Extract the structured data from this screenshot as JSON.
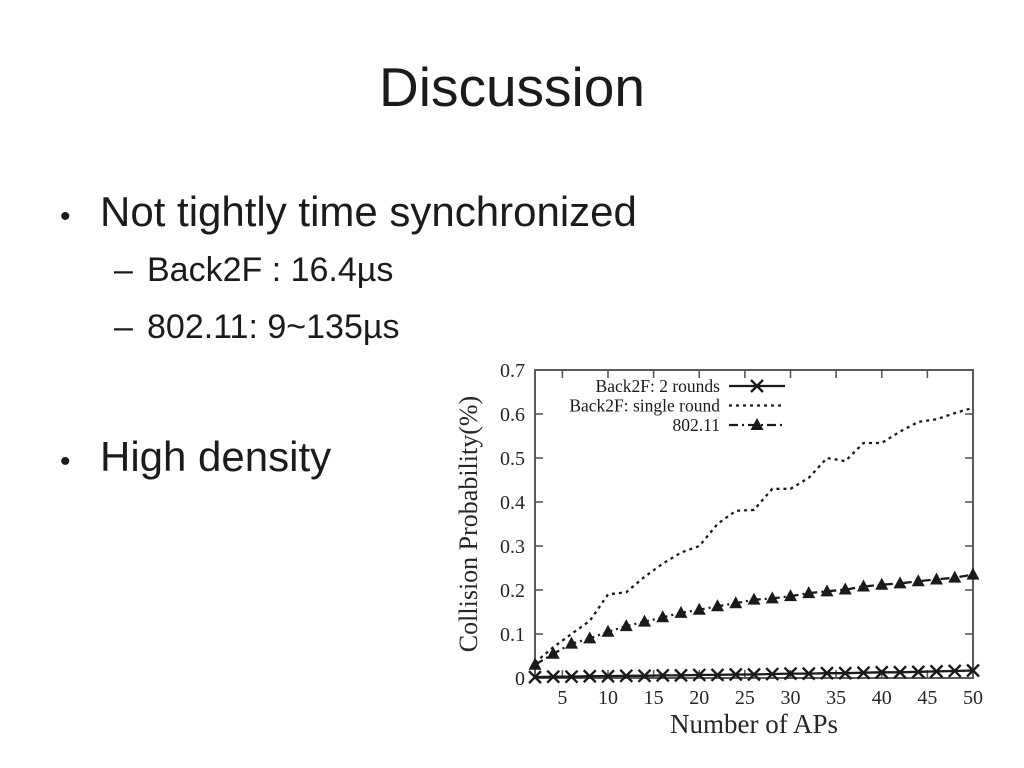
{
  "colors": {
    "ink": "#1a1a1a",
    "background": "#ffffff",
    "chart_frame": "#5a5a5a"
  },
  "slide": {
    "title": "Discussion",
    "bullets": [
      {
        "level": 1,
        "marker": "•",
        "text": "Not tightly time synchronized"
      },
      {
        "level": 2,
        "marker": "–",
        "text": "Back2F : 16.4µs"
      },
      {
        "level": 2,
        "marker": "–",
        "text": "802.11: 9~135µs"
      },
      {
        "level": 1,
        "marker": "•",
        "text": "High density"
      }
    ]
  },
  "chart_data": {
    "type": "line",
    "title": "",
    "xlabel": "Number of APs",
    "ylabel": "Collision Probability(%)",
    "xlim": [
      2,
      50
    ],
    "ylim": [
      0,
      0.7
    ],
    "xticks": [
      5,
      10,
      15,
      20,
      25,
      30,
      35,
      40,
      45,
      50
    ],
    "yticks": [
      0,
      0.1,
      0.2,
      0.3,
      0.4,
      0.5,
      0.6,
      0.7
    ],
    "grid": false,
    "legend_position": "top-left-inside",
    "x": [
      2,
      4,
      6,
      8,
      10,
      12,
      14,
      16,
      18,
      20,
      22,
      24,
      26,
      28,
      30,
      32,
      34,
      36,
      38,
      40,
      42,
      44,
      46,
      48,
      50
    ],
    "series": [
      {
        "name": "Back2F: 2 rounds",
        "marker": "x",
        "line_style": "solid",
        "color": "#1a1a1a",
        "values": [
          0.002,
          0.003,
          0.003,
          0.004,
          0.004,
          0.005,
          0.005,
          0.006,
          0.006,
          0.007,
          0.007,
          0.008,
          0.008,
          0.009,
          0.01,
          0.01,
          0.011,
          0.011,
          0.012,
          0.013,
          0.013,
          0.014,
          0.015,
          0.016,
          0.017
        ]
      },
      {
        "name": "Back2F: single round",
        "marker": "none",
        "line_style": "dashed",
        "color": "#1a1a1a",
        "values": [
          0.035,
          0.07,
          0.1,
          0.13,
          0.19,
          0.195,
          0.23,
          0.26,
          0.285,
          0.3,
          0.35,
          0.38,
          0.382,
          0.43,
          0.43,
          0.455,
          0.5,
          0.493,
          0.534,
          0.534,
          0.56,
          0.582,
          0.588,
          0.602,
          0.614
        ]
      },
      {
        "name": "802.11",
        "marker": "triangle",
        "line_style": "dash-dot",
        "color": "#1a1a1a",
        "values": [
          0.03,
          0.055,
          0.078,
          0.09,
          0.105,
          0.118,
          0.128,
          0.138,
          0.148,
          0.155,
          0.163,
          0.17,
          0.178,
          0.181,
          0.186,
          0.193,
          0.197,
          0.201,
          0.208,
          0.212,
          0.215,
          0.22,
          0.224,
          0.228,
          0.235
        ]
      }
    ]
  }
}
